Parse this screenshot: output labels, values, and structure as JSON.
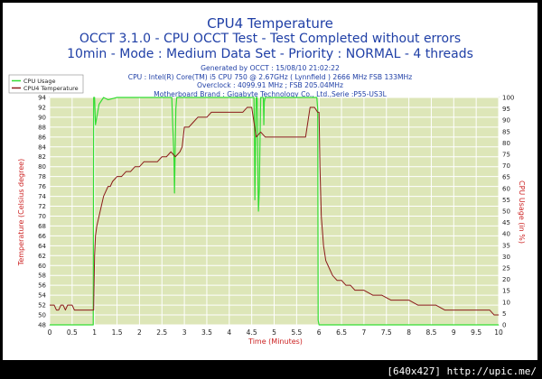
{
  "header": {
    "title": "CPU4 Temperature",
    "subtitle1": "OCCT 3.1.0 - CPU OCCT Test - Test Completed without errors",
    "subtitle2": "10min - Mode : Medium Data Set - Priority : NORMAL - 4 threads"
  },
  "info": {
    "generated": "Generated by OCCT : 15/08/10 21:02:22",
    "cpu": "CPU : Intel(R) Core(TM) i5 CPU 750 @ 2.67GHz ( Lynnfield ) 2666 MHz FSB 133MHz",
    "overclock": "Overclock : 4099.91 MHz ; FSB 205.04MHz",
    "motherboard": "Motherboard Brand : Gigabyte Technology Co., Ltd.,Serie :P55-US3L"
  },
  "footer": "[640x427] http://upic.me/",
  "colors": {
    "frame": "#000000",
    "plot_bg": "#dde6b8",
    "grid": "#ffffff",
    "temperature": "#8b1a1a",
    "cpu_usage": "#33dd33",
    "title": "#1f3fa6",
    "axis_left_label": "#cc2222",
    "axis_right_label": "#cc2222"
  },
  "chart_data": {
    "type": "line",
    "xlabel": "Time (Minutes)",
    "ylabel_left": "Temperature (Celsius degree)",
    "ylabel_right": "CPU Usage (in %)",
    "xlim": [
      0,
      10
    ],
    "ylim_left": [
      48,
      94
    ],
    "ylim_right": [
      0,
      100
    ],
    "x_ticks": [
      "0",
      "0.5",
      "1",
      "1.5",
      "2",
      "2.5",
      "3",
      "3.5",
      "4",
      "4.5",
      "5",
      "5.5",
      "6",
      "6.5",
      "7",
      "7.5",
      "8",
      "8.5",
      "9",
      "9.5",
      "10"
    ],
    "y_ticks_left": [
      "48",
      "50",
      "52",
      "54",
      "56",
      "58",
      "60",
      "62",
      "64",
      "66",
      "68",
      "70",
      "72",
      "74",
      "76",
      "78",
      "80",
      "82",
      "84",
      "86",
      "88",
      "90",
      "92",
      "94"
    ],
    "y_ticks_right": [
      "0",
      "5",
      "10",
      "15",
      "20",
      "25",
      "30",
      "35",
      "40",
      "45",
      "50",
      "55",
      "60",
      "65",
      "70",
      "75",
      "80",
      "85",
      "90",
      "95",
      "100"
    ],
    "grid": true,
    "legend": "top-left",
    "series": [
      {
        "name": "CPU Usage",
        "axis": "right",
        "x": [
          0,
          0.97,
          0.98,
          1.0,
          1.02,
          1.1,
          1.2,
          1.3,
          1.5,
          2.0,
          2.5,
          2.72,
          2.74,
          2.76,
          2.77,
          2.78,
          2.79,
          2.81,
          2.83,
          2.9,
          3.0,
          3.5,
          4.0,
          4.5,
          4.55,
          4.56,
          4.57,
          4.58,
          4.6,
          4.62,
          4.63,
          4.64,
          4.65,
          4.66,
          4.67,
          4.68,
          4.7,
          4.76,
          4.77,
          4.78,
          4.8,
          4.85,
          5.0,
          5.5,
          5.95,
          5.97,
          5.98,
          6.0,
          6.02,
          6.5,
          7.0,
          8.0,
          9.0,
          10.0
        ],
        "values": [
          0,
          0,
          100,
          100,
          88,
          97,
          100,
          99,
          100,
          100,
          100,
          100,
          88,
          78,
          72,
          58,
          70,
          95,
          100,
          100,
          100,
          100,
          100,
          100,
          100,
          88,
          55,
          70,
          100,
          100,
          90,
          62,
          50,
          55,
          60,
          75,
          100,
          100,
          88,
          98,
          100,
          100,
          100,
          100,
          100,
          95,
          2,
          0,
          0,
          0,
          0,
          0,
          0,
          0
        ]
      },
      {
        "name": "CPU4 Temperature",
        "axis": "left",
        "x": [
          0,
          0.05,
          0.1,
          0.15,
          0.2,
          0.25,
          0.3,
          0.35,
          0.4,
          0.45,
          0.5,
          0.55,
          0.6,
          0.65,
          0.7,
          0.75,
          0.8,
          0.85,
          0.9,
          0.95,
          0.98,
          1.0,
          1.02,
          1.05,
          1.1,
          1.15,
          1.2,
          1.25,
          1.3,
          1.35,
          1.4,
          1.5,
          1.6,
          1.7,
          1.8,
          1.9,
          2.0,
          2.1,
          2.2,
          2.3,
          2.4,
          2.5,
          2.6,
          2.7,
          2.8,
          2.9,
          2.95,
          3.0,
          3.1,
          3.2,
          3.3,
          3.4,
          3.5,
          3.6,
          3.7,
          3.8,
          3.9,
          4.0,
          4.1,
          4.2,
          4.3,
          4.4,
          4.5,
          4.6,
          4.7,
          4.8,
          4.9,
          5.0,
          5.1,
          5.2,
          5.3,
          5.4,
          5.5,
          5.6,
          5.7,
          5.8,
          5.9,
          5.97,
          6.0,
          6.02,
          6.05,
          6.1,
          6.15,
          6.2,
          6.25,
          6.3,
          6.4,
          6.5,
          6.6,
          6.7,
          6.8,
          6.9,
          7.0,
          7.2,
          7.4,
          7.6,
          7.8,
          8.0,
          8.2,
          8.4,
          8.6,
          8.8,
          9.0,
          9.2,
          9.4,
          9.6,
          9.8,
          9.9,
          10.0
        ],
        "values": [
          52,
          52,
          52,
          51,
          51,
          52,
          52,
          51,
          52,
          52,
          52,
          51,
          51,
          51,
          51,
          51,
          51,
          51,
          51,
          51,
          51,
          62,
          66,
          68,
          70,
          72,
          74,
          75,
          76,
          76,
          77,
          78,
          78,
          79,
          79,
          80,
          80,
          81,
          81,
          81,
          81,
          82,
          82,
          83,
          82,
          83,
          84,
          88,
          88,
          89,
          90,
          90,
          90,
          91,
          91,
          91,
          91,
          91,
          91,
          91,
          91,
          92,
          92,
          86,
          87,
          86,
          86,
          86,
          86,
          86,
          86,
          86,
          86,
          86,
          86,
          92,
          92,
          91,
          91,
          80,
          70,
          64,
          61,
          60,
          59,
          58,
          57,
          57,
          56,
          56,
          55,
          55,
          55,
          54,
          54,
          53,
          53,
          53,
          52,
          52,
          52,
          51,
          51,
          51,
          51,
          51,
          51,
          50,
          50
        ]
      }
    ]
  }
}
